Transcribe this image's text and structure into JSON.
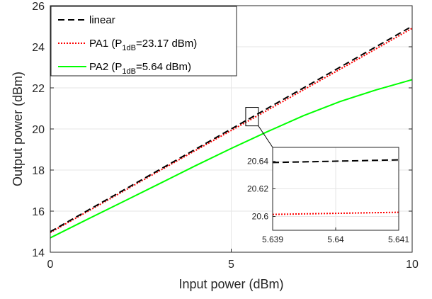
{
  "chart_data": {
    "type": "line",
    "xlabel": "Input power (dBm)",
    "ylabel": "Output power (dBm)",
    "xlim": [
      0,
      10
    ],
    "ylim": [
      14,
      26
    ],
    "xticks": [
      "0",
      "5",
      "10"
    ],
    "yticks": [
      "14",
      "16",
      "18",
      "20",
      "22",
      "24",
      "26"
    ],
    "grid": true,
    "legend_position": "top-left",
    "series": [
      {
        "name": "linear",
        "legend_main": "linear",
        "color": "#000000",
        "dash": "dashed",
        "x": [
          0,
          10
        ],
        "y": [
          15,
          25
        ]
      },
      {
        "name": "PA1 (P1dB=23.17 dBm)",
        "legend_main": "PA1 (P",
        "legend_sub": "1dB",
        "legend_tail": "=23.17 dBm)",
        "color": "#ff0000",
        "dash": "dotted",
        "x": [
          0,
          2,
          4,
          6,
          8,
          10
        ],
        "y": [
          14.96,
          16.95,
          18.94,
          20.91,
          22.9,
          24.9
        ]
      },
      {
        "name": "PA2 (P1dB=5.64 dBm)",
        "legend_main": "PA2 (P",
        "legend_sub": "1dB",
        "legend_tail": "=5.64 dBm)",
        "color": "#00ff00",
        "dash": "solid",
        "x": [
          0,
          1,
          2,
          3,
          4,
          5,
          6,
          7,
          8,
          9,
          10
        ],
        "y": [
          14.7,
          15.58,
          16.45,
          17.32,
          18.2,
          19.05,
          19.87,
          20.65,
          21.33,
          21.9,
          22.4
        ]
      }
    ],
    "inset": {
      "xlim": [
        5.639,
        5.641
      ],
      "ylim": [
        20.59,
        20.65
      ],
      "xticks": [
        "5.639",
        "5.64",
        "5.641"
      ],
      "yticks": [
        "20.6",
        "20.62",
        "20.64"
      ],
      "series": [
        {
          "name": "linear",
          "color": "#000000",
          "dash": "dashed",
          "x": [
            5.639,
            5.641
          ],
          "y": [
            20.639,
            20.641
          ]
        },
        {
          "name": "PA1",
          "color": "#ff0000",
          "dash": "dotted",
          "x": [
            5.639,
            5.641
          ],
          "y": [
            20.6015,
            20.603
          ]
        }
      ],
      "zoom_box": {
        "xlim": [
          5.4,
          5.75
        ],
        "ylim": [
          20.15,
          21.05
        ]
      }
    }
  }
}
